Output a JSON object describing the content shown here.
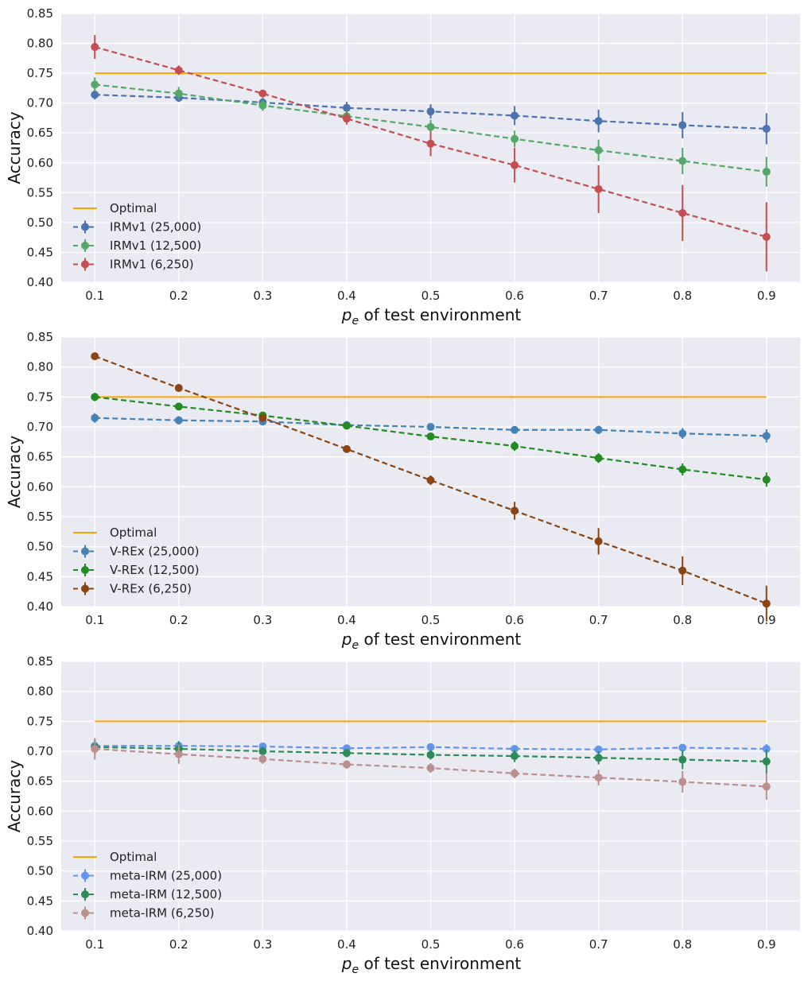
{
  "chart_data": [
    {
      "type": "line",
      "title": "",
      "xlabel_symbol": "p",
      "xlabel_sub": "e",
      "xlabel_rest": " of test environment",
      "ylabel": "Accuracy",
      "xlim": [
        0.06,
        0.94
      ],
      "ylim": [
        0.4,
        0.85
      ],
      "xticks": [
        "0.1",
        "0.2",
        "0.3",
        "0.4",
        "0.5",
        "0.6",
        "0.7",
        "0.8",
        "0.9"
      ],
      "yticks": [
        "0.40",
        "0.45",
        "0.50",
        "0.55",
        "0.60",
        "0.65",
        "0.70",
        "0.75",
        "0.80",
        "0.85"
      ],
      "x": [
        0.1,
        0.2,
        0.3,
        0.4,
        0.5,
        0.6,
        0.7,
        0.8,
        0.9
      ],
      "optimal": {
        "name": "Optimal",
        "value": 0.75,
        "color": "#FFA500"
      },
      "legend_position": "lower-left",
      "series": [
        {
          "name": "IRMv1 (25,000)",
          "color": "#4C72B0",
          "values": [
            0.714,
            0.709,
            0.701,
            0.692,
            0.686,
            0.679,
            0.67,
            0.663,
            0.657
          ],
          "errors": [
            0.008,
            0.007,
            0.008,
            0.01,
            0.012,
            0.016,
            0.019,
            0.022,
            0.026
          ]
        },
        {
          "name": "IRMv1 (12,500)",
          "color": "#55A868",
          "values": [
            0.731,
            0.716,
            0.696,
            0.678,
            0.66,
            0.64,
            0.621,
            0.603,
            0.585
          ],
          "errors": [
            0.012,
            0.011,
            0.009,
            0.01,
            0.012,
            0.014,
            0.018,
            0.022,
            0.025
          ]
        },
        {
          "name": "IRMv1 (6,250)",
          "color": "#C44E52",
          "values": [
            0.794,
            0.755,
            0.716,
            0.674,
            0.632,
            0.596,
            0.556,
            0.516,
            0.476
          ],
          "errors": [
            0.02,
            0.008,
            0.004,
            0.01,
            0.021,
            0.029,
            0.04,
            0.047,
            0.058
          ]
        }
      ]
    },
    {
      "type": "line",
      "title": "",
      "xlabel_symbol": "p",
      "xlabel_sub": "e",
      "xlabel_rest": " of test environment",
      "ylabel": "Accuracy",
      "xlim": [
        0.06,
        0.94
      ],
      "ylim": [
        0.4,
        0.85
      ],
      "xticks": [
        "0.1",
        "0.2",
        "0.3",
        "0.4",
        "0.5",
        "0.6",
        "0.7",
        "0.8",
        "0.9"
      ],
      "yticks": [
        "0.40",
        "0.45",
        "0.50",
        "0.55",
        "0.60",
        "0.65",
        "0.70",
        "0.75",
        "0.80",
        "0.85"
      ],
      "x": [
        0.1,
        0.2,
        0.3,
        0.4,
        0.5,
        0.6,
        0.7,
        0.8,
        0.9
      ],
      "optimal": {
        "name": "Optimal",
        "value": 0.75,
        "color": "#FFA500"
      },
      "legend_position": "lower-left",
      "series": [
        {
          "name": "V-REx (25,000)",
          "color": "#4682B4",
          "values": [
            0.715,
            0.711,
            0.709,
            0.703,
            0.7,
            0.695,
            0.695,
            0.689,
            0.685
          ],
          "errors": [
            0.008,
            0.007,
            0.005,
            0.005,
            0.005,
            0.006,
            0.007,
            0.009,
            0.011
          ]
        },
        {
          "name": "V-REx (12,500)",
          "color": "#228B22",
          "values": [
            0.75,
            0.734,
            0.719,
            0.702,
            0.684,
            0.668,
            0.648,
            0.629,
            0.612
          ],
          "errors": [
            0.007,
            0.005,
            0.005,
            0.006,
            0.006,
            0.008,
            0.008,
            0.01,
            0.012
          ]
        },
        {
          "name": "V-REx (6,250)",
          "color": "#8B4513",
          "values": [
            0.818,
            0.765,
            0.715,
            0.663,
            0.611,
            0.56,
            0.509,
            0.46,
            0.405
          ],
          "errors": [
            0.006,
            0.005,
            0.005,
            0.005,
            0.008,
            0.015,
            0.022,
            0.024,
            0.03
          ]
        }
      ]
    },
    {
      "type": "line",
      "title": "",
      "xlabel_symbol": "p",
      "xlabel_sub": "e",
      "xlabel_rest": " of test environment",
      "ylabel": "Accuracy",
      "xlim": [
        0.06,
        0.94
      ],
      "ylim": [
        0.4,
        0.85
      ],
      "xticks": [
        "0.1",
        "0.2",
        "0.3",
        "0.4",
        "0.5",
        "0.6",
        "0.7",
        "0.8",
        "0.9"
      ],
      "yticks": [
        "0.40",
        "0.45",
        "0.50",
        "0.55",
        "0.60",
        "0.65",
        "0.70",
        "0.75",
        "0.80",
        "0.85"
      ],
      "x": [
        0.1,
        0.2,
        0.3,
        0.4,
        0.5,
        0.6,
        0.7,
        0.8,
        0.9
      ],
      "optimal": {
        "name": "Optimal",
        "value": 0.75,
        "color": "#FFA500"
      },
      "legend_position": "lower-left",
      "series": [
        {
          "name": "meta-IRM (25,000)",
          "color": "#6495ED",
          "values": [
            0.709,
            0.709,
            0.708,
            0.705,
            0.707,
            0.704,
            0.703,
            0.706,
            0.704
          ],
          "errors": [
            0.01,
            0.008,
            0.005,
            0.005,
            0.005,
            0.006,
            0.005,
            0.006,
            0.008
          ]
        },
        {
          "name": "meta-IRM (12,500)",
          "color": "#2E8B57",
          "values": [
            0.707,
            0.704,
            0.7,
            0.697,
            0.694,
            0.692,
            0.689,
            0.686,
            0.683
          ],
          "errors": [
            0.012,
            0.012,
            0.008,
            0.007,
            0.008,
            0.01,
            0.011,
            0.016,
            0.02
          ]
        },
        {
          "name": "meta-IRM (6,250)",
          "color": "#BC8F8F",
          "values": [
            0.704,
            0.695,
            0.687,
            0.678,
            0.672,
            0.663,
            0.656,
            0.649,
            0.641
          ],
          "errors": [
            0.018,
            0.016,
            0.008,
            0.007,
            0.008,
            0.008,
            0.013,
            0.018,
            0.022
          ]
        }
      ]
    }
  ]
}
